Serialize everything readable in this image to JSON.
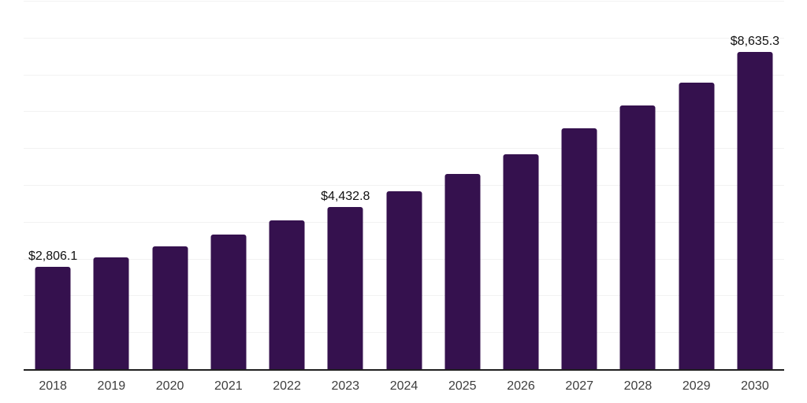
{
  "chart_data": {
    "type": "bar",
    "title": "",
    "xlabel": "",
    "ylabel": "",
    "categories": [
      "2018",
      "2019",
      "2020",
      "2021",
      "2022",
      "2023",
      "2024",
      "2025",
      "2026",
      "2027",
      "2028",
      "2029",
      "2030"
    ],
    "values": [
      2806.1,
      3055,
      3345,
      3675,
      4050,
      4432.8,
      4850,
      5330,
      5865,
      6570,
      7190,
      7800,
      8635.3
    ],
    "labeled_points": {
      "2018": "$2,806.1",
      "2023": "$4,432.8",
      "2030": "$8,635.3"
    },
    "ylim": [
      0,
      10000
    ],
    "gridline_interval": 1000,
    "grid": "horizontal",
    "legend": "none",
    "bar_color": "#35114E",
    "grid_color": "#f2f2f2",
    "axis_line_color": "#1f1f1f",
    "tick_label_color": "#3d3d3d",
    "value_label_color": "#111111"
  }
}
